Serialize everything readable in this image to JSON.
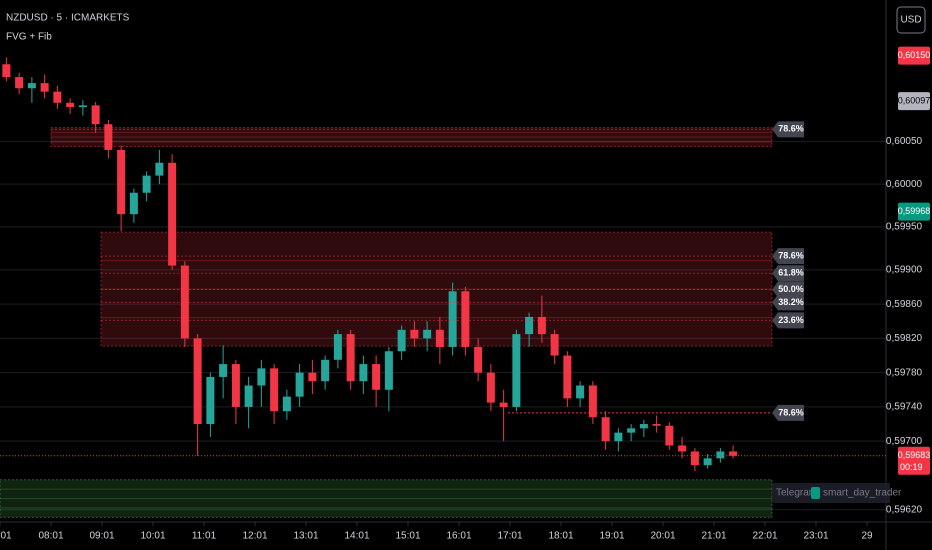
{
  "chart_data": {
    "type": "candlestick",
    "title": "NZDUSD · 5 · ICMARKETS",
    "subtitle": "FVG + Fib",
    "currency": "USD",
    "up_color": "#26a69a",
    "down_color": "#f23645",
    "grid": true,
    "categories": [
      null,
      null,
      null,
      null,
      null,
      null,
      null,
      null,
      null,
      null,
      null,
      null,
      null,
      null,
      null,
      null,
      null,
      null,
      null,
      null,
      null,
      null,
      null,
      null,
      null,
      null,
      null,
      null,
      null,
      null,
      null,
      null,
      null,
      null,
      null,
      null,
      null,
      null,
      null,
      null,
      null,
      null,
      null,
      null,
      null,
      null,
      null,
      null,
      null,
      null,
      null,
      null,
      null,
      null,
      null,
      null,
      null,
      null
    ],
    "open": [
      0.6014,
      0.60125,
      0.60112,
      0.60118,
      0.60108,
      0.60095,
      0.6009,
      0.60092,
      0.6007,
      0.6004,
      0.59965,
      0.5999,
      0.6001,
      0.60025,
      0.59905,
      0.5982,
      0.5972,
      0.59775,
      0.5979,
      0.5974,
      0.59765,
      0.59785,
      0.59735,
      0.59752,
      0.5978,
      0.5977,
      0.59795,
      0.59825,
      0.5977,
      0.5979,
      0.5976,
      0.59805,
      0.5983,
      0.5982,
      0.5983,
      0.5981,
      0.59875,
      0.5981,
      0.5978,
      0.59745,
      0.5974,
      0.59825,
      0.59845,
      0.59825,
      0.598,
      0.5975,
      0.59765,
      0.59728,
      0.597,
      0.5971,
      0.59715,
      0.5972,
      0.59718,
      0.59695,
      0.59688,
      0.59672,
      0.5968,
      0.59688
    ],
    "high": [
      0.60148,
      0.6013,
      0.60125,
      0.60128,
      0.60115,
      0.601,
      0.60098,
      0.60096,
      0.60075,
      0.60045,
      0.59995,
      0.60015,
      0.6004,
      0.60035,
      0.5991,
      0.59825,
      0.5978,
      0.59812,
      0.59795,
      0.59775,
      0.59795,
      0.5979,
      0.5976,
      0.5979,
      0.59795,
      0.598,
      0.5983,
      0.5983,
      0.598,
      0.598,
      0.5981,
      0.59835,
      0.5984,
      0.5984,
      0.59845,
      0.59885,
      0.5988,
      0.5982,
      0.5979,
      0.5976,
      0.5983,
      0.5985,
      0.5987,
      0.5983,
      0.59805,
      0.5977,
      0.5977,
      0.59735,
      0.59715,
      0.5972,
      0.59725,
      0.5973,
      0.59722,
      0.59705,
      0.59692,
      0.59685,
      0.59692,
      0.59695
    ],
    "low": [
      0.6012,
      0.60105,
      0.60095,
      0.601,
      0.60088,
      0.60082,
      0.6008,
      0.6006,
      0.6003,
      0.59945,
      0.59955,
      0.5998,
      0.6,
      0.599,
      0.5981,
      0.59683,
      0.59705,
      0.5975,
      0.5972,
      0.59715,
      0.5974,
      0.5972,
      0.59725,
      0.5974,
      0.59755,
      0.5976,
      0.59785,
      0.5976,
      0.59755,
      0.5974,
      0.59735,
      0.59795,
      0.5981,
      0.59805,
      0.5979,
      0.598,
      0.598,
      0.5977,
      0.59735,
      0.597,
      0.59735,
      0.5981,
      0.59815,
      0.5979,
      0.5974,
      0.5974,
      0.5972,
      0.5969,
      0.59688,
      0.597,
      0.59705,
      0.5971,
      0.5969,
      0.5968,
      0.59665,
      0.59668,
      0.59675,
      0.5968
    ],
    "close": [
      0.60125,
      0.60112,
      0.60118,
      0.60108,
      0.60095,
      0.6009,
      0.60092,
      0.6007,
      0.6004,
      0.59965,
      0.5999,
      0.6001,
      0.60025,
      0.59905,
      0.5982,
      0.5972,
      0.59775,
      0.5979,
      0.5974,
      0.59765,
      0.59785,
      0.59735,
      0.59752,
      0.5978,
      0.5977,
      0.59795,
      0.59825,
      0.5977,
      0.5979,
      0.5976,
      0.59805,
      0.5983,
      0.5982,
      0.5983,
      0.5981,
      0.59875,
      0.5981,
      0.5978,
      0.59745,
      0.5974,
      0.59825,
      0.59845,
      0.59825,
      0.598,
      0.5975,
      0.59765,
      0.59728,
      0.597,
      0.5971,
      0.59715,
      0.5972,
      0.59718,
      0.59695,
      0.59688,
      0.59672,
      0.5968,
      0.59688,
      0.59683
    ],
    "ylim": [
      0.59608,
      0.60215
    ],
    "yticks": [
      {
        "value": 0.6005,
        "label": "0,60050"
      },
      {
        "value": 0.6,
        "label": "0,60000"
      },
      {
        "value": 0.5995,
        "label": "0,59950"
      },
      {
        "value": 0.599,
        "label": "0,59900"
      },
      {
        "value": 0.5986,
        "label": "0,59860"
      },
      {
        "value": 0.5982,
        "label": "0,59820"
      },
      {
        "value": 0.5978,
        "label": "0,59780"
      },
      {
        "value": 0.5974,
        "label": "0,59740"
      },
      {
        "value": 0.597,
        "label": "0,59700"
      },
      {
        "value": 0.5962,
        "label": "0,59620"
      }
    ],
    "xticks": [
      {
        "value": 0,
        "label": "01"
      },
      {
        "value": 4,
        "label": "08:01"
      },
      {
        "value": 8,
        "label": "09:01"
      },
      {
        "value": 12,
        "label": "10:01"
      },
      {
        "value": 16,
        "label": "11:01"
      },
      {
        "value": 20,
        "label": "12:01"
      },
      {
        "value": 24,
        "label": "13:01"
      },
      {
        "value": 28,
        "label": "14:01"
      },
      {
        "value": 32,
        "label": "15:01"
      },
      {
        "value": 36,
        "label": "16:01"
      },
      {
        "value": 40,
        "label": "17:01"
      },
      {
        "value": 44,
        "label": "18:01"
      },
      {
        "value": 48,
        "label": "19:01"
      },
      {
        "value": 52,
        "label": "20:01"
      },
      {
        "value": 56,
        "label": "21:01"
      },
      {
        "value": 60,
        "label": "22:01"
      },
      {
        "value": 64,
        "label": "23:01"
      },
      {
        "value": 68,
        "label": "29"
      }
    ],
    "zones": [
      {
        "low": 0.60044,
        "high": 0.60066,
        "color": "#f23645"
      },
      {
        "low": 0.59811,
        "high": 0.59944,
        "color": "#f23645"
      },
      {
        "low": 0.59611,
        "high": 0.59655,
        "color": "#4caf50"
      }
    ],
    "levels": [
      {
        "value": 0.60064,
        "label": "78.6%"
      },
      {
        "value": 0.59916,
        "label": "78.6%"
      },
      {
        "value": 0.59896,
        "label": "61.8%"
      },
      {
        "value": 0.59877,
        "label": "50.0%"
      },
      {
        "value": 0.59862,
        "label": "38.2%"
      },
      {
        "value": 0.59841,
        "label": "23.6%"
      },
      {
        "value": 0.59733,
        "label": "78.6%"
      }
    ],
    "price_badges": [
      {
        "value": 0.6015,
        "label": "0,60150",
        "color": "#f23645"
      },
      {
        "value": 0.60097,
        "label": "0,60097",
        "color": "#b2b5be"
      },
      {
        "value": 0.59968,
        "label": "0,59968",
        "color": "#089981"
      },
      {
        "value": 0.59683,
        "label": "0,59683",
        "color": "#f23645",
        "timer": "00:19"
      }
    ],
    "watermark": {
      "prefix": "Telegram",
      "handle": "smart_day_trader"
    }
  }
}
